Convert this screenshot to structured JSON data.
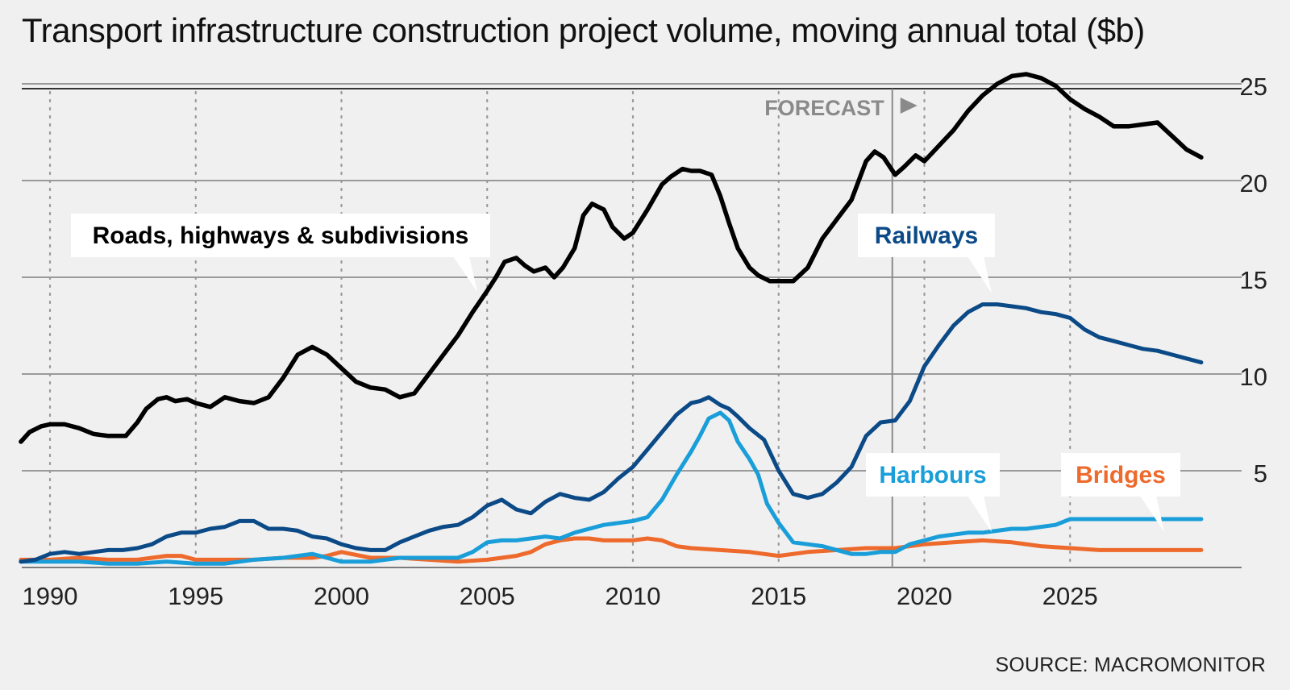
{
  "chart_data": {
    "type": "line",
    "title": "Transport infrastructure construction project volume, moving annual total ($b)",
    "source": "SOURCE: MACROMONITOR",
    "xlim": [
      1989,
      2030
    ],
    "ylim": [
      0,
      25
    ],
    "y_axis_position": "right",
    "yticks": [
      5,
      10,
      15,
      20,
      25
    ],
    "xticks": [
      1990,
      1995,
      2000,
      2005,
      2010,
      2015,
      2020,
      2025
    ],
    "grid": "horizontal solid, vertical dotted",
    "forecast": {
      "label": "FORECAST",
      "start_x": 2018.9
    },
    "series": [
      {
        "name": "Roads, highways & subdivisions",
        "color": "#000000",
        "label_color": "#000000",
        "x": [
          1989.0,
          1989.3,
          1989.7,
          1990.0,
          1990.5,
          1991.0,
          1991.5,
          1992.0,
          1992.6,
          1993.0,
          1993.3,
          1993.7,
          1994.0,
          1994.3,
          1994.7,
          1995.0,
          1995.5,
          1996.0,
          1996.5,
          1997.0,
          1997.5,
          1998.0,
          1998.5,
          1999.0,
          1999.5,
          2000.0,
          2000.5,
          2001.0,
          2001.5,
          2002.0,
          2002.5,
          2003.0,
          2003.5,
          2004.0,
          2004.5,
          2005.0,
          2005.3,
          2005.6,
          2006.0,
          2006.3,
          2006.6,
          2007.0,
          2007.3,
          2007.6,
          2008.0,
          2008.3,
          2008.6,
          2009.0,
          2009.3,
          2009.7,
          2010.0,
          2010.5,
          2011.0,
          2011.3,
          2011.7,
          2012.0,
          2012.3,
          2012.7,
          2013.0,
          2013.3,
          2013.6,
          2014.0,
          2014.3,
          2014.7,
          2015.0,
          2015.5,
          2016.0,
          2016.5,
          2017.0,
          2017.5,
          2018.0,
          2018.3,
          2018.6,
          2019.0,
          2019.3,
          2019.7,
          2020.0,
          2020.5,
          2021.0,
          2021.5,
          2022.0,
          2022.5,
          2023.0,
          2023.5,
          2024.0,
          2024.5,
          2025.0,
          2025.5,
          2026.0,
          2026.5,
          2027.0,
          2027.5,
          2028.0,
          2028.5,
          2029.0,
          2029.5
        ],
        "values": [
          6.5,
          7.0,
          7.3,
          7.4,
          7.4,
          7.2,
          6.9,
          6.8,
          6.8,
          7.5,
          8.2,
          8.7,
          8.8,
          8.6,
          8.7,
          8.5,
          8.3,
          8.8,
          8.6,
          8.5,
          8.8,
          9.8,
          11.0,
          11.4,
          11.0,
          10.3,
          9.6,
          9.3,
          9.2,
          8.8,
          9.0,
          10.0,
          11.0,
          12.0,
          13.2,
          14.3,
          15.0,
          15.8,
          16.0,
          15.6,
          15.3,
          15.5,
          15.0,
          15.5,
          16.5,
          18.2,
          18.8,
          18.5,
          17.6,
          17.0,
          17.3,
          18.5,
          19.8,
          20.2,
          20.6,
          20.5,
          20.5,
          20.3,
          19.2,
          17.8,
          16.5,
          15.5,
          15.1,
          14.8,
          14.8,
          14.8,
          15.5,
          17.0,
          18.0,
          19.0,
          21.0,
          21.5,
          21.2,
          20.3,
          20.7,
          21.3,
          21.0,
          21.8,
          22.6,
          23.6,
          24.4,
          25.0,
          25.4,
          25.5,
          25.3,
          24.9,
          24.2,
          23.7,
          23.3,
          22.8,
          22.8,
          22.9,
          23.0,
          22.3,
          21.6,
          21.2
        ]
      },
      {
        "name": "Railways",
        "color": "#0b4a87",
        "label_color": "#0b4a87",
        "x": [
          1989.0,
          1989.5,
          1990.0,
          1990.5,
          1991.0,
          1991.5,
          1992.0,
          1992.5,
          1993.0,
          1993.5,
          1994.0,
          1994.5,
          1995.0,
          1995.5,
          1996.0,
          1996.5,
          1997.0,
          1997.5,
          1998.0,
          1998.5,
          1999.0,
          1999.5,
          2000.0,
          2000.5,
          2001.0,
          2001.5,
          2002.0,
          2002.5,
          2003.0,
          2003.5,
          2004.0,
          2004.5,
          2005.0,
          2005.5,
          2006.0,
          2006.5,
          2007.0,
          2007.5,
          2008.0,
          2008.5,
          2009.0,
          2009.5,
          2010.0,
          2010.5,
          2011.0,
          2011.5,
          2012.0,
          2012.3,
          2012.6,
          2013.0,
          2013.3,
          2013.6,
          2014.0,
          2014.5,
          2015.0,
          2015.5,
          2016.0,
          2016.5,
          2017.0,
          2017.5,
          2018.0,
          2018.5,
          2019.0,
          2019.5,
          2020.0,
          2020.5,
          2021.0,
          2021.5,
          2022.0,
          2022.5,
          2023.0,
          2023.5,
          2024.0,
          2024.5,
          2025.0,
          2025.5,
          2026.0,
          2026.5,
          2027.0,
          2027.5,
          2028.0,
          2028.5,
          2029.0,
          2029.5
        ],
        "values": [
          0.3,
          0.4,
          0.7,
          0.8,
          0.7,
          0.8,
          0.9,
          0.9,
          1.0,
          1.2,
          1.6,
          1.8,
          1.8,
          2.0,
          2.1,
          2.4,
          2.4,
          2.0,
          2.0,
          1.9,
          1.6,
          1.5,
          1.2,
          1.0,
          0.9,
          0.9,
          1.3,
          1.6,
          1.9,
          2.1,
          2.2,
          2.6,
          3.2,
          3.5,
          3.0,
          2.8,
          3.4,
          3.8,
          3.6,
          3.5,
          3.9,
          4.6,
          5.2,
          6.1,
          7.0,
          7.9,
          8.5,
          8.6,
          8.8,
          8.4,
          8.2,
          7.8,
          7.2,
          6.6,
          5.0,
          3.8,
          3.6,
          3.8,
          4.4,
          5.2,
          6.8,
          7.5,
          7.6,
          8.6,
          10.4,
          11.5,
          12.5,
          13.2,
          13.6,
          13.6,
          13.5,
          13.4,
          13.2,
          13.1,
          12.9,
          12.3,
          11.9,
          11.7,
          11.5,
          11.3,
          11.2,
          11.0,
          10.8,
          10.6
        ]
      },
      {
        "name": "Harbours",
        "color": "#1a9ed9",
        "label_color": "#1a9ed9",
        "x": [
          1989.0,
          1990.0,
          1991.0,
          1992.0,
          1993.0,
          1994.0,
          1995.0,
          1996.0,
          1997.0,
          1998.0,
          1999.0,
          2000.0,
          2001.0,
          2002.0,
          2003.0,
          2004.0,
          2004.5,
          2005.0,
          2005.5,
          2006.0,
          2006.5,
          2007.0,
          2007.5,
          2008.0,
          2008.5,
          2009.0,
          2009.5,
          2010.0,
          2010.5,
          2011.0,
          2011.5,
          2012.0,
          2012.3,
          2012.6,
          2013.0,
          2013.3,
          2013.6,
          2014.0,
          2014.3,
          2014.6,
          2015.0,
          2015.5,
          2016.0,
          2016.5,
          2017.0,
          2017.5,
          2018.0,
          2018.5,
          2019.0,
          2019.5,
          2020.0,
          2020.5,
          2021.0,
          2021.5,
          2022.0,
          2022.5,
          2023.0,
          2023.5,
          2024.0,
          2024.5,
          2025.0,
          2025.5,
          2026.0,
          2026.5,
          2027.0,
          2027.5,
          2028.0,
          2028.5,
          2029.0,
          2029.5
        ],
        "values": [
          0.3,
          0.3,
          0.3,
          0.2,
          0.2,
          0.3,
          0.2,
          0.2,
          0.4,
          0.5,
          0.7,
          0.3,
          0.3,
          0.5,
          0.5,
          0.5,
          0.8,
          1.3,
          1.4,
          1.4,
          1.5,
          1.6,
          1.5,
          1.8,
          2.0,
          2.2,
          2.3,
          2.4,
          2.6,
          3.5,
          4.8,
          6.0,
          6.8,
          7.7,
          8.0,
          7.6,
          6.5,
          5.6,
          4.8,
          3.3,
          2.3,
          1.3,
          1.2,
          1.1,
          0.9,
          0.7,
          0.7,
          0.8,
          0.8,
          1.2,
          1.4,
          1.6,
          1.7,
          1.8,
          1.8,
          1.9,
          2.0,
          2.0,
          2.1,
          2.2,
          2.5,
          2.5,
          2.5,
          2.5,
          2.5,
          2.5,
          2.5,
          2.5,
          2.5,
          2.5
        ]
      },
      {
        "name": "Bridges",
        "color": "#ee6a2c",
        "label_color": "#ee6a2c",
        "x": [
          1989.0,
          1990.0,
          1991.0,
          1992.0,
          1993.0,
          1994.0,
          1994.5,
          1995.0,
          1996.0,
          1997.0,
          1998.0,
          1999.0,
          1999.5,
          2000.0,
          2001.0,
          2002.0,
          2003.0,
          2004.0,
          2005.0,
          2006.0,
          2006.5,
          2007.0,
          2007.5,
          2008.0,
          2008.5,
          2009.0,
          2009.5,
          2010.0,
          2010.5,
          2011.0,
          2011.5,
          2012.0,
          2013.0,
          2014.0,
          2015.0,
          2016.0,
          2017.0,
          2018.0,
          2019.0,
          2020.0,
          2021.0,
          2022.0,
          2023.0,
          2024.0,
          2025.0,
          2026.0,
          2027.0,
          2028.0,
          2029.0,
          2029.5
        ],
        "values": [
          0.4,
          0.4,
          0.5,
          0.4,
          0.4,
          0.6,
          0.6,
          0.4,
          0.4,
          0.4,
          0.5,
          0.5,
          0.6,
          0.8,
          0.5,
          0.5,
          0.4,
          0.3,
          0.4,
          0.6,
          0.8,
          1.2,
          1.4,
          1.5,
          1.5,
          1.4,
          1.4,
          1.4,
          1.5,
          1.4,
          1.1,
          1.0,
          0.9,
          0.8,
          0.6,
          0.8,
          0.9,
          1.0,
          1.0,
          1.2,
          1.3,
          1.4,
          1.3,
          1.1,
          1.0,
          0.9,
          0.9,
          0.9,
          0.9,
          0.9
        ]
      }
    ],
    "annotations": [
      {
        "series": "Roads, highways & subdivisions",
        "text": "Roads, highways & subdivisions",
        "anchor_x": 2004.8,
        "anchor_y": 14.4
      },
      {
        "series": "Railways",
        "text": "Railways",
        "anchor_x": 2022.2,
        "anchor_y": 13.7
      },
      {
        "series": "Harbours",
        "text": "Harbours",
        "anchor_x": 2022.2,
        "anchor_y": 1.9
      },
      {
        "series": "Bridges",
        "text": "Bridges",
        "anchor_x": 2029.2,
        "anchor_y": 2.6
      }
    ]
  }
}
